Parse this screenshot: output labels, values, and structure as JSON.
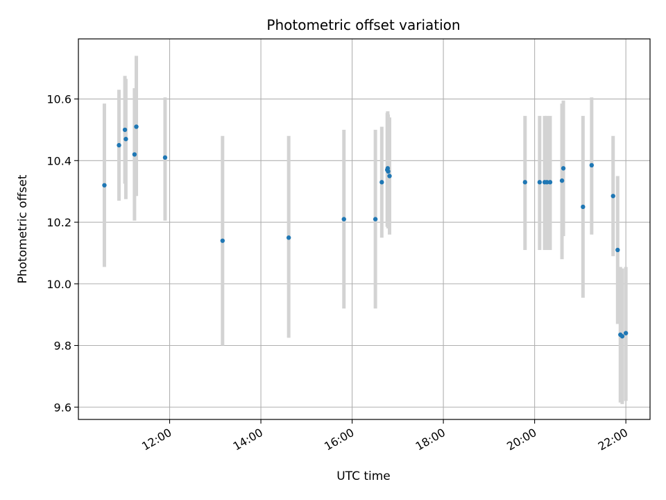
{
  "chart_data": {
    "type": "scatter",
    "title": "Photometric offset variation",
    "xlabel": "UTC time",
    "ylabel": "Photometric offset",
    "x_unit": "hours UTC",
    "xlim": [
      10.0,
      22.53
    ],
    "ylim": [
      9.56,
      10.795
    ],
    "x_ticks": [
      {
        "value": 12,
        "label": "12:00"
      },
      {
        "value": 14,
        "label": "14:00"
      },
      {
        "value": 16,
        "label": "16:00"
      },
      {
        "value": 18,
        "label": "18:00"
      },
      {
        "value": 20,
        "label": "20:00"
      },
      {
        "value": 22,
        "label": "22:00"
      }
    ],
    "y_ticks": [
      {
        "value": 9.6,
        "label": "9.6"
      },
      {
        "value": 9.8,
        "label": "9.8"
      },
      {
        "value": 10.0,
        "label": "10.0"
      },
      {
        "value": 10.2,
        "label": "10.2"
      },
      {
        "value": 10.4,
        "label": "10.4"
      },
      {
        "value": 10.6,
        "label": "10.6"
      }
    ],
    "grid": true,
    "colors": {
      "point": "#1f77b4",
      "errorbar": "#d3d3d3",
      "grid": "#b0b0b0"
    },
    "points": [
      {
        "x": 10.57,
        "y": 10.32,
        "err_low": 10.055,
        "err_high": 10.585
      },
      {
        "x": 10.89,
        "y": 10.45,
        "err_low": 10.27,
        "err_high": 10.63
      },
      {
        "x": 11.02,
        "y": 10.5,
        "err_low": 10.325,
        "err_high": 10.675
      },
      {
        "x": 11.04,
        "y": 10.47,
        "err_low": 10.275,
        "err_high": 10.665
      },
      {
        "x": 11.23,
        "y": 10.42,
        "err_low": 10.205,
        "err_high": 10.635
      },
      {
        "x": 11.27,
        "y": 10.51,
        "err_low": 10.285,
        "err_high": 10.74
      },
      {
        "x": 11.9,
        "y": 10.41,
        "err_low": 10.205,
        "err_high": 10.605
      },
      {
        "x": 13.16,
        "y": 10.14,
        "err_low": 9.8,
        "err_high": 10.48
      },
      {
        "x": 14.61,
        "y": 10.15,
        "err_low": 9.825,
        "err_high": 10.48
      },
      {
        "x": 15.82,
        "y": 10.21,
        "err_low": 9.92,
        "err_high": 10.5
      },
      {
        "x": 16.51,
        "y": 10.21,
        "err_low": 9.92,
        "err_high": 10.5
      },
      {
        "x": 16.65,
        "y": 10.33,
        "err_low": 10.15,
        "err_high": 10.51
      },
      {
        "x": 16.77,
        "y": 10.37,
        "err_low": 10.185,
        "err_high": 10.555
      },
      {
        "x": 16.78,
        "y": 10.375,
        "err_low": 10.19,
        "err_high": 10.56
      },
      {
        "x": 16.79,
        "y": 10.365,
        "err_low": 10.18,
        "err_high": 10.55
      },
      {
        "x": 16.82,
        "y": 10.35,
        "err_low": 10.16,
        "err_high": 10.54
      },
      {
        "x": 19.79,
        "y": 10.33,
        "err_low": 10.11,
        "err_high": 10.545
      },
      {
        "x": 20.11,
        "y": 10.33,
        "err_low": 10.11,
        "err_high": 10.545
      },
      {
        "x": 20.22,
        "y": 10.33,
        "err_low": 10.11,
        "err_high": 10.545
      },
      {
        "x": 20.27,
        "y": 10.33,
        "err_low": 10.11,
        "err_high": 10.545
      },
      {
        "x": 20.34,
        "y": 10.33,
        "err_low": 10.11,
        "err_high": 10.545
      },
      {
        "x": 20.6,
        "y": 10.335,
        "err_low": 10.08,
        "err_high": 10.585
      },
      {
        "x": 20.63,
        "y": 10.375,
        "err_low": 10.155,
        "err_high": 10.595
      },
      {
        "x": 21.06,
        "y": 10.25,
        "err_low": 9.955,
        "err_high": 10.545
      },
      {
        "x": 21.25,
        "y": 10.385,
        "err_low": 10.16,
        "err_high": 10.605
      },
      {
        "x": 21.72,
        "y": 10.285,
        "err_low": 10.09,
        "err_high": 10.48
      },
      {
        "x": 21.82,
        "y": 10.11,
        "err_low": 9.87,
        "err_high": 10.35
      },
      {
        "x": 21.88,
        "y": 9.835,
        "err_low": 9.615,
        "err_high": 10.055
      },
      {
        "x": 21.92,
        "y": 9.83,
        "err_low": 9.61,
        "err_high": 10.05
      },
      {
        "x": 22.0,
        "y": 9.84,
        "err_low": 9.62,
        "err_high": 10.055
      }
    ]
  }
}
